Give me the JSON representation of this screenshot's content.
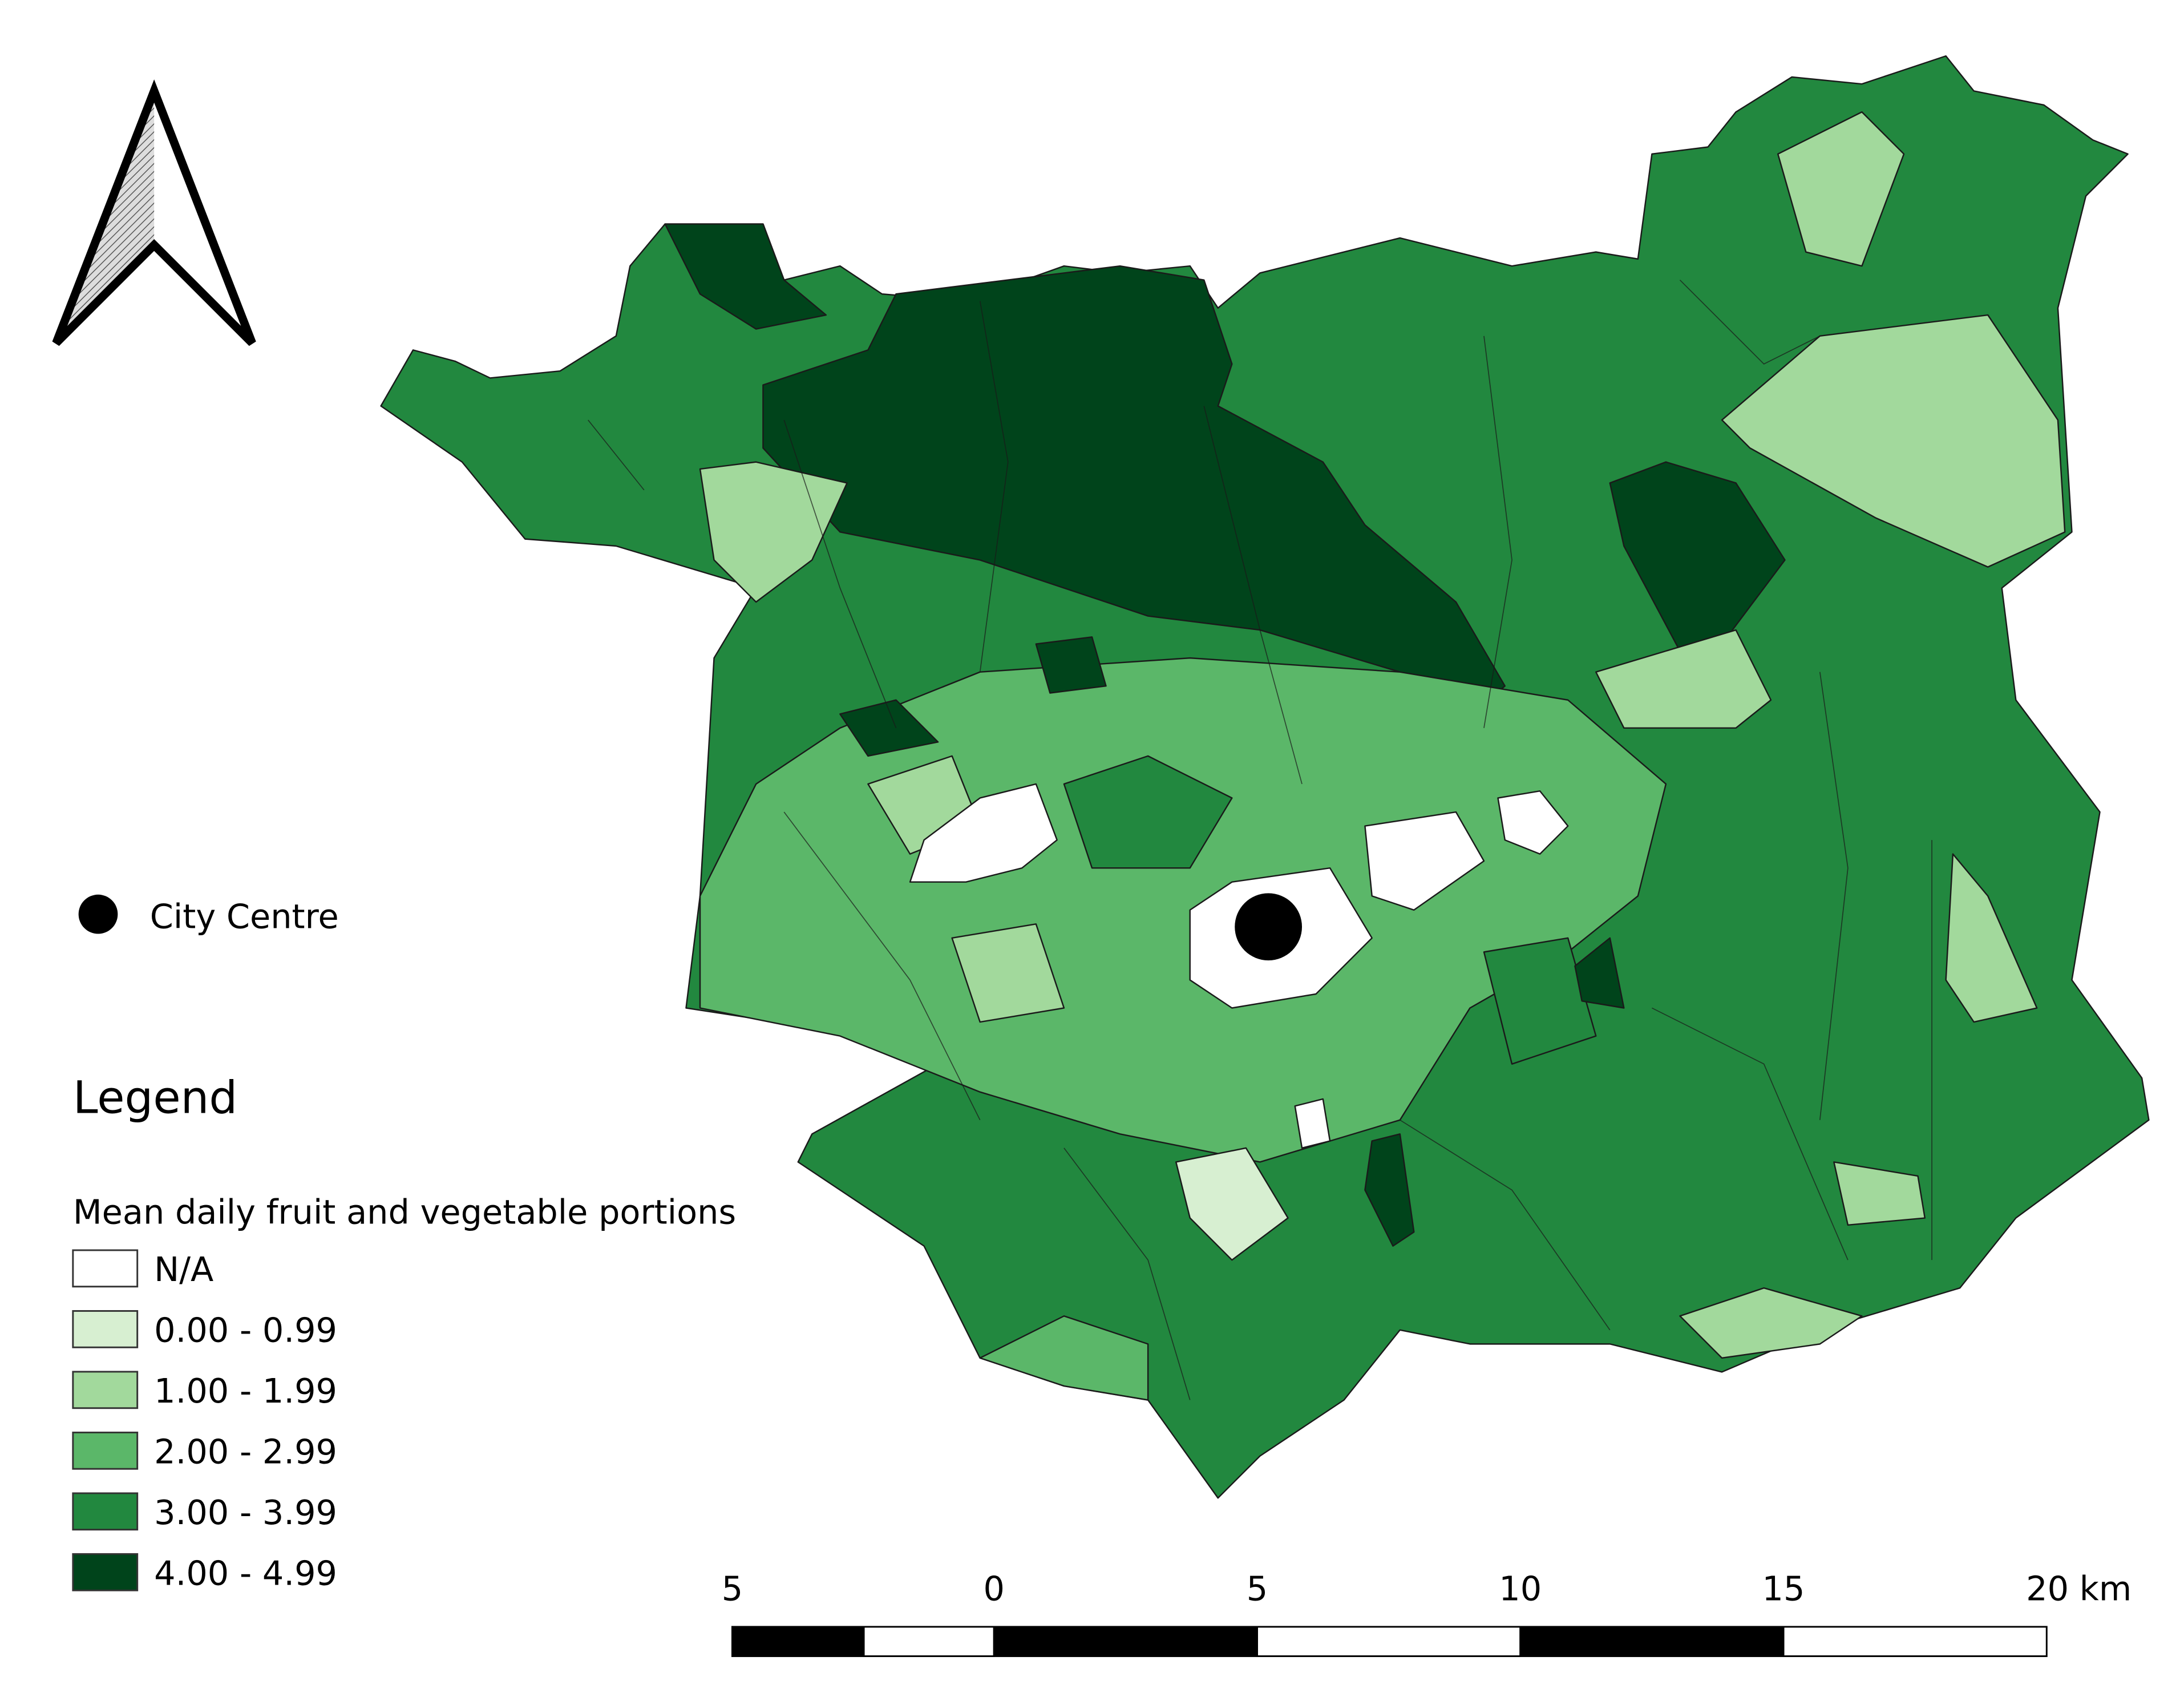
{
  "city_centre": {
    "label": "City Centre"
  },
  "legend": {
    "heading": "Legend",
    "title": "Mean daily fruit and vegetable portions",
    "entries": [
      {
        "label": "N/A",
        "color": "#ffffff"
      },
      {
        "label": " 0.00 - 0.99",
        "color": "#d7efd1"
      },
      {
        "label": "1.00 - 1.99",
        "color": "#a2d99c"
      },
      {
        "label": "2.00 - 2.99",
        "color": "#5bb769"
      },
      {
        "label": "3.00 - 3.99",
        "color": "#22883f"
      },
      {
        "label": "4.00 - 4.99",
        "color": "#00441b"
      }
    ]
  },
  "scale_bar": {
    "labels": [
      "5",
      "0",
      "5",
      "10",
      "15",
      "20 km"
    ]
  }
}
